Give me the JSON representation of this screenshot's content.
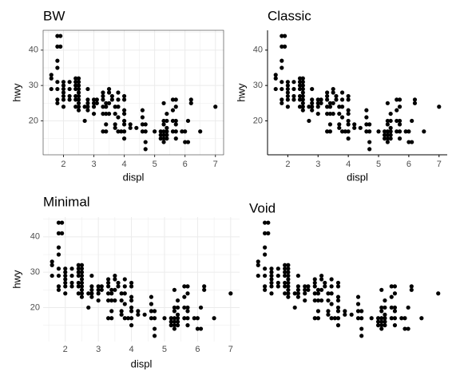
{
  "chart_data": [
    {
      "type": "scatter",
      "title": "BW",
      "xlabel": "displ",
      "ylabel": "hwy",
      "grid": true,
      "border": true,
      "axis_lines": false,
      "tick_marks": true,
      "color": "#000000",
      "xlim": [
        1.33,
        7.27
      ],
      "ylim": [
        10.4,
        45.6
      ],
      "xticks": [
        2,
        3,
        4,
        5,
        6,
        7
      ],
      "yticks": [
        20,
        30,
        40
      ],
      "x": [
        1.6,
        1.6,
        1.6,
        1.8,
        1.8,
        1.8,
        1.8,
        1.8,
        1.8,
        1.8,
        1.8,
        1.9,
        1.9,
        2,
        2,
        2,
        2,
        2,
        2,
        2,
        2.2,
        2.2,
        2.2,
        2.2,
        2.4,
        2.4,
        2.4,
        2.4,
        2.4,
        2.4,
        2.4,
        2.5,
        2.5,
        2.5,
        2.5,
        2.5,
        2.5,
        2.5,
        2.5,
        2.5,
        2.5,
        2.7,
        2.7,
        2.8,
        2.8,
        2.8,
        2.8,
        2.8,
        3,
        3,
        3,
        3,
        3.1,
        3.1,
        3.3,
        3.3,
        3.3,
        3.3,
        3.3,
        3.3,
        3.4,
        3.4,
        3.4,
        3.4,
        3.4,
        3.5,
        3.5,
        3.5,
        3.5,
        3.6,
        3.6,
        3.7,
        3.7,
        3.7,
        3.7,
        3.8,
        3.8,
        3.8,
        3.8,
        3.8,
        3.9,
        4,
        4,
        4,
        4,
        4,
        4,
        4,
        4,
        4.2,
        4.2,
        4.4,
        4.6,
        4.6,
        4.6,
        4.6,
        4.7,
        4.7,
        4.7,
        4.7,
        5,
        5.2,
        5.2,
        5.2,
        5.3,
        5.3,
        5.3,
        5.3,
        5.3,
        5.3,
        5.3,
        5.4,
        5.4,
        5.4,
        5.4,
        5.4,
        5.4,
        5.6,
        5.6,
        5.6,
        5.6,
        5.7,
        5.7,
        5.7,
        5.7,
        5.7,
        5.7,
        5.9,
        6,
        6,
        6.1,
        6.1,
        6.2,
        6.2,
        6.5,
        7
      ],
      "y": [
        29,
        32,
        33,
        25,
        26,
        29,
        31,
        35,
        37,
        41,
        44,
        41,
        44,
        24,
        26,
        27,
        28,
        29,
        30,
        31,
        26,
        27,
        29,
        31,
        24,
        26,
        27,
        29,
        30,
        31,
        32,
        23,
        24,
        25,
        26,
        27,
        28,
        29,
        30,
        31,
        32,
        20,
        24,
        23,
        24,
        25,
        26,
        29,
        22,
        24,
        25,
        26,
        25,
        26,
        17,
        22,
        24,
        26,
        27,
        28,
        17,
        19,
        22,
        24,
        25,
        22,
        25,
        28,
        29,
        26,
        27,
        18,
        19,
        22,
        24,
        17,
        21,
        24,
        26,
        28,
        17,
        15,
        17,
        19,
        20,
        22,
        23,
        26,
        27,
        18,
        19,
        18,
        17,
        19,
        21,
        23,
        12,
        14,
        17,
        19,
        17,
        15,
        16,
        17,
        14,
        15,
        16,
        17,
        19,
        20,
        25,
        15,
        16,
        17,
        18,
        20,
        22,
        17,
        20,
        23,
        26,
        15,
        17,
        19,
        20,
        24,
        26,
        17,
        14,
        17,
        14,
        20,
        25,
        26,
        17,
        24
      ]
    },
    {
      "type": "scatter",
      "title": "Classic",
      "xlabel": "displ",
      "ylabel": "hwy",
      "grid": false,
      "border": false,
      "axis_lines": true,
      "tick_marks": true,
      "color": "#000000",
      "xlim": [
        1.33,
        7.27
      ],
      "ylim": [
        10.4,
        45.6
      ],
      "xticks": [
        2,
        3,
        4,
        5,
        6,
        7
      ],
      "yticks": [
        20,
        30,
        40
      ],
      "x": [
        1.6,
        1.6,
        1.6,
        1.8,
        1.8,
        1.8,
        1.8,
        1.8,
        1.8,
        1.8,
        1.8,
        1.9,
        1.9,
        2,
        2,
        2,
        2,
        2,
        2,
        2,
        2.2,
        2.2,
        2.2,
        2.2,
        2.4,
        2.4,
        2.4,
        2.4,
        2.4,
        2.4,
        2.4,
        2.5,
        2.5,
        2.5,
        2.5,
        2.5,
        2.5,
        2.5,
        2.5,
        2.5,
        2.5,
        2.7,
        2.7,
        2.8,
        2.8,
        2.8,
        2.8,
        2.8,
        3,
        3,
        3,
        3,
        3.1,
        3.1,
        3.3,
        3.3,
        3.3,
        3.3,
        3.3,
        3.3,
        3.4,
        3.4,
        3.4,
        3.4,
        3.4,
        3.5,
        3.5,
        3.5,
        3.5,
        3.6,
        3.6,
        3.7,
        3.7,
        3.7,
        3.7,
        3.8,
        3.8,
        3.8,
        3.8,
        3.8,
        3.9,
        4,
        4,
        4,
        4,
        4,
        4,
        4,
        4,
        4.2,
        4.2,
        4.4,
        4.6,
        4.6,
        4.6,
        4.6,
        4.7,
        4.7,
        4.7,
        4.7,
        5,
        5.2,
        5.2,
        5.2,
        5.3,
        5.3,
        5.3,
        5.3,
        5.3,
        5.3,
        5.3,
        5.4,
        5.4,
        5.4,
        5.4,
        5.4,
        5.4,
        5.6,
        5.6,
        5.6,
        5.6,
        5.7,
        5.7,
        5.7,
        5.7,
        5.7,
        5.7,
        5.9,
        6,
        6,
        6.1,
        6.1,
        6.2,
        6.2,
        6.5,
        7
      ],
      "y": [
        29,
        32,
        33,
        25,
        26,
        29,
        31,
        35,
        37,
        41,
        44,
        41,
        44,
        24,
        26,
        27,
        28,
        29,
        30,
        31,
        26,
        27,
        29,
        31,
        24,
        26,
        27,
        29,
        30,
        31,
        32,
        23,
        24,
        25,
        26,
        27,
        28,
        29,
        30,
        31,
        32,
        20,
        24,
        23,
        24,
        25,
        26,
        29,
        22,
        24,
        25,
        26,
        25,
        26,
        17,
        22,
        24,
        26,
        27,
        28,
        17,
        19,
        22,
        24,
        25,
        22,
        25,
        28,
        29,
        26,
        27,
        18,
        19,
        22,
        24,
        17,
        21,
        24,
        26,
        28,
        17,
        15,
        17,
        19,
        20,
        22,
        23,
        26,
        27,
        18,
        19,
        18,
        17,
        19,
        21,
        23,
        12,
        14,
        17,
        19,
        17,
        15,
        16,
        17,
        14,
        15,
        16,
        17,
        19,
        20,
        25,
        15,
        16,
        17,
        18,
        20,
        22,
        17,
        20,
        23,
        26,
        15,
        17,
        19,
        20,
        24,
        26,
        17,
        14,
        17,
        14,
        20,
        25,
        26,
        17,
        24
      ]
    },
    {
      "type": "scatter",
      "title": "Minimal",
      "xlabel": "displ",
      "ylabel": "hwy",
      "grid": true,
      "border": false,
      "axis_lines": false,
      "tick_marks": false,
      "color": "#000000",
      "xlim": [
        1.33,
        7.27
      ],
      "ylim": [
        10.4,
        45.6
      ],
      "xticks": [
        2,
        3,
        4,
        5,
        6,
        7
      ],
      "yticks": [
        20,
        30,
        40
      ],
      "x": [
        1.6,
        1.6,
        1.6,
        1.8,
        1.8,
        1.8,
        1.8,
        1.8,
        1.8,
        1.8,
        1.8,
        1.9,
        1.9,
        2,
        2,
        2,
        2,
        2,
        2,
        2,
        2.2,
        2.2,
        2.2,
        2.2,
        2.4,
        2.4,
        2.4,
        2.4,
        2.4,
        2.4,
        2.4,
        2.5,
        2.5,
        2.5,
        2.5,
        2.5,
        2.5,
        2.5,
        2.5,
        2.5,
        2.5,
        2.7,
        2.7,
        2.8,
        2.8,
        2.8,
        2.8,
        2.8,
        3,
        3,
        3,
        3,
        3.1,
        3.1,
        3.3,
        3.3,
        3.3,
        3.3,
        3.3,
        3.3,
        3.4,
        3.4,
        3.4,
        3.4,
        3.4,
        3.5,
        3.5,
        3.5,
        3.5,
        3.6,
        3.6,
        3.7,
        3.7,
        3.7,
        3.7,
        3.8,
        3.8,
        3.8,
        3.8,
        3.8,
        3.9,
        4,
        4,
        4,
        4,
        4,
        4,
        4,
        4,
        4.2,
        4.2,
        4.4,
        4.6,
        4.6,
        4.6,
        4.6,
        4.7,
        4.7,
        4.7,
        4.7,
        5,
        5.2,
        5.2,
        5.2,
        5.3,
        5.3,
        5.3,
        5.3,
        5.3,
        5.3,
        5.3,
        5.4,
        5.4,
        5.4,
        5.4,
        5.4,
        5.4,
        5.6,
        5.6,
        5.6,
        5.6,
        5.7,
        5.7,
        5.7,
        5.7,
        5.7,
        5.7,
        5.9,
        6,
        6,
        6.1,
        6.1,
        6.2,
        6.2,
        6.5,
        7
      ],
      "y": [
        29,
        32,
        33,
        25,
        26,
        29,
        31,
        35,
        37,
        41,
        44,
        41,
        44,
        24,
        26,
        27,
        28,
        29,
        30,
        31,
        26,
        27,
        29,
        31,
        24,
        26,
        27,
        29,
        30,
        31,
        32,
        23,
        24,
        25,
        26,
        27,
        28,
        29,
        30,
        31,
        32,
        20,
        24,
        23,
        24,
        25,
        26,
        29,
        22,
        24,
        25,
        26,
        25,
        26,
        17,
        22,
        24,
        26,
        27,
        28,
        17,
        19,
        22,
        24,
        25,
        22,
        25,
        28,
        29,
        26,
        27,
        18,
        19,
        22,
        24,
        17,
        21,
        24,
        26,
        28,
        17,
        15,
        17,
        19,
        20,
        22,
        23,
        26,
        27,
        18,
        19,
        18,
        17,
        19,
        21,
        23,
        12,
        14,
        17,
        19,
        17,
        15,
        16,
        17,
        14,
        15,
        16,
        17,
        19,
        20,
        25,
        15,
        16,
        17,
        18,
        20,
        22,
        17,
        20,
        23,
        26,
        15,
        17,
        19,
        20,
        24,
        26,
        17,
        14,
        17,
        14,
        20,
        25,
        26,
        17,
        24
      ]
    },
    {
      "type": "scatter",
      "title": "Void",
      "grid": false,
      "border": false,
      "axis_lines": false,
      "tick_marks": false,
      "color": "#000000",
      "xlim": [
        1.33,
        7.27
      ],
      "ylim": [
        10.4,
        45.6
      ],
      "x": [
        1.6,
        1.6,
        1.6,
        1.8,
        1.8,
        1.8,
        1.8,
        1.8,
        1.8,
        1.8,
        1.8,
        1.9,
        1.9,
        2,
        2,
        2,
        2,
        2,
        2,
        2,
        2.2,
        2.2,
        2.2,
        2.2,
        2.4,
        2.4,
        2.4,
        2.4,
        2.4,
        2.4,
        2.4,
        2.5,
        2.5,
        2.5,
        2.5,
        2.5,
        2.5,
        2.5,
        2.5,
        2.5,
        2.5,
        2.7,
        2.7,
        2.8,
        2.8,
        2.8,
        2.8,
        2.8,
        3,
        3,
        3,
        3,
        3.1,
        3.1,
        3.3,
        3.3,
        3.3,
        3.3,
        3.3,
        3.3,
        3.4,
        3.4,
        3.4,
        3.4,
        3.4,
        3.5,
        3.5,
        3.5,
        3.5,
        3.6,
        3.6,
        3.7,
        3.7,
        3.7,
        3.7,
        3.8,
        3.8,
        3.8,
        3.8,
        3.8,
        3.9,
        4,
        4,
        4,
        4,
        4,
        4,
        4,
        4,
        4.2,
        4.2,
        4.4,
        4.6,
        4.6,
        4.6,
        4.6,
        4.7,
        4.7,
        4.7,
        4.7,
        5,
        5.2,
        5.2,
        5.2,
        5.3,
        5.3,
        5.3,
        5.3,
        5.3,
        5.3,
        5.3,
        5.4,
        5.4,
        5.4,
        5.4,
        5.4,
        5.4,
        5.6,
        5.6,
        5.6,
        5.6,
        5.7,
        5.7,
        5.7,
        5.7,
        5.7,
        5.7,
        5.9,
        6,
        6,
        6.1,
        6.1,
        6.2,
        6.2,
        6.5,
        7
      ],
      "y": [
        29,
        32,
        33,
        25,
        26,
        29,
        31,
        35,
        37,
        41,
        44,
        41,
        44,
        24,
        26,
        27,
        28,
        29,
        30,
        31,
        26,
        27,
        29,
        31,
        24,
        26,
        27,
        29,
        30,
        31,
        32,
        23,
        24,
        25,
        26,
        27,
        28,
        29,
        30,
        31,
        32,
        20,
        24,
        23,
        24,
        25,
        26,
        29,
        22,
        24,
        25,
        26,
        25,
        26,
        17,
        22,
        24,
        26,
        27,
        28,
        17,
        19,
        22,
        24,
        25,
        22,
        25,
        28,
        29,
        26,
        27,
        18,
        19,
        22,
        24,
        17,
        21,
        24,
        26,
        28,
        17,
        15,
        17,
        19,
        20,
        22,
        23,
        26,
        27,
        18,
        19,
        18,
        17,
        19,
        21,
        23,
        12,
        14,
        17,
        19,
        17,
        15,
        16,
        17,
        14,
        15,
        16,
        17,
        19,
        20,
        25,
        15,
        16,
        17,
        18,
        20,
        22,
        17,
        20,
        23,
        26,
        15,
        17,
        19,
        20,
        24,
        26,
        17,
        14,
        17,
        14,
        20,
        25,
        26,
        17,
        24
      ]
    }
  ]
}
